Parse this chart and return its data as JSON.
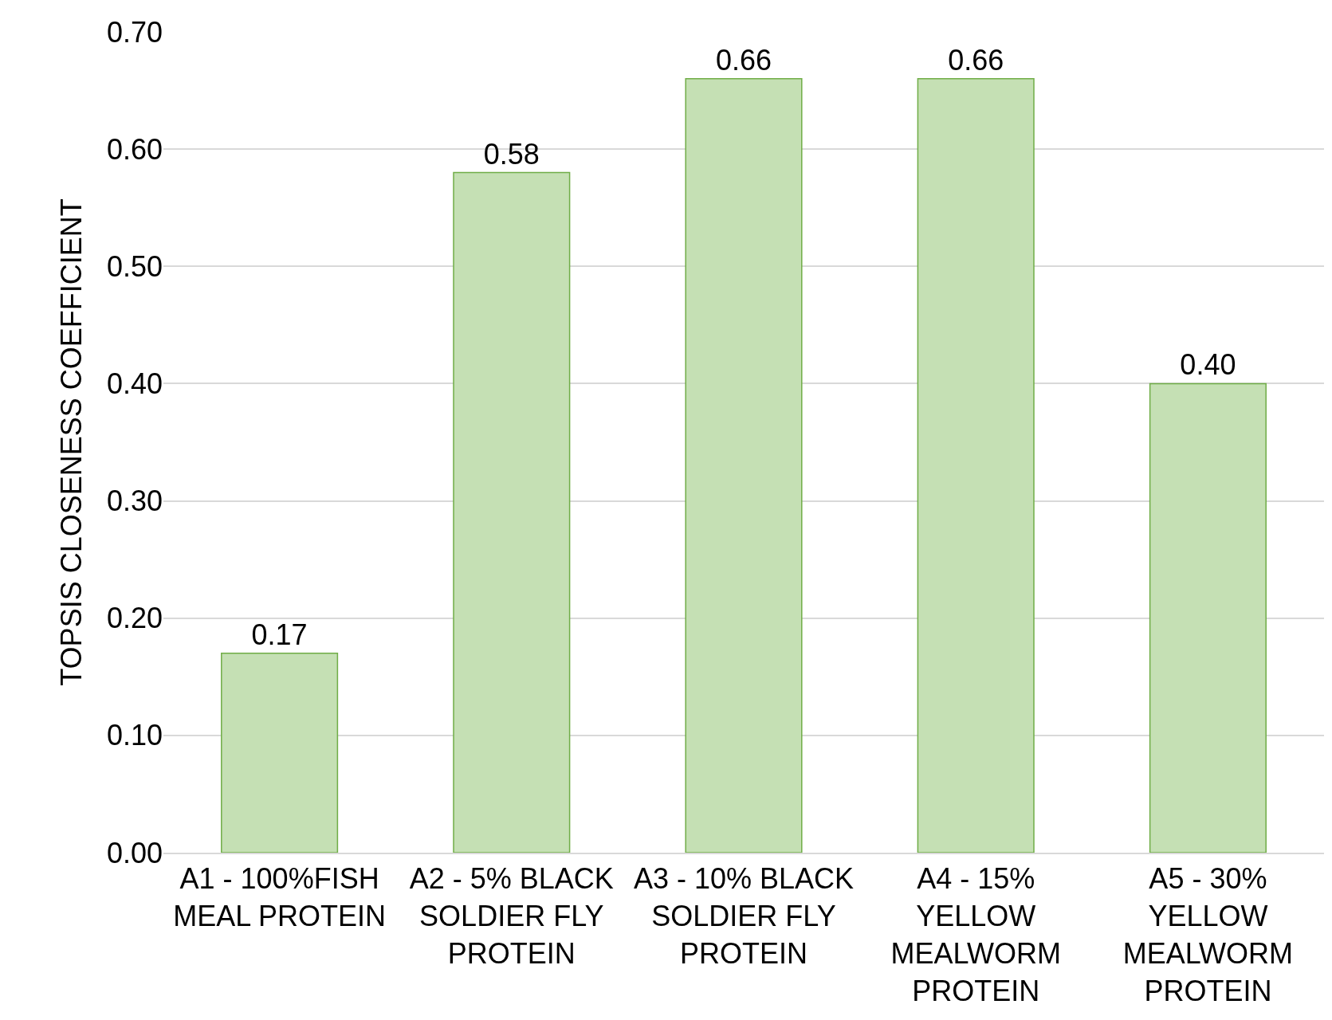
{
  "chart_data": {
    "type": "bar",
    "ylabel": "TOPSIS CLOSENESS COEFFICIENT",
    "categories": [
      "A1 - 100%FISH MEAL PROTEIN",
      "A2 - 5% BLACK SOLDIER FLY PROTEIN",
      "A3 - 10% BLACK SOLDIER FLY PROTEIN",
      "A4 - 15% YELLOW MEALWORM PROTEIN",
      "A5 - 30% YELLOW MEALWORM PROTEIN"
    ],
    "values": [
      0.17,
      0.58,
      0.66,
      0.66,
      0.4
    ],
    "color": "#c5e0b4",
    "ylim": [
      0,
      0.7
    ],
    "yticks": [
      {
        "value": 0,
        "label": "0.00"
      },
      {
        "value": 0.1,
        "label": "0.10"
      },
      {
        "value": 0.2,
        "label": "0.20"
      },
      {
        "value": 0.3,
        "label": "0.30"
      },
      {
        "value": 0.4,
        "label": "0.40"
      },
      {
        "value": 0.5,
        "label": "0.50"
      },
      {
        "value": 0.6,
        "label": "0.60"
      },
      {
        "value": 0.7,
        "label": "0.70"
      }
    ],
    "value_labels": [
      "0.17",
      "0.58",
      "0.66",
      "0.66",
      "0.40"
    ],
    "grid": "y"
  }
}
